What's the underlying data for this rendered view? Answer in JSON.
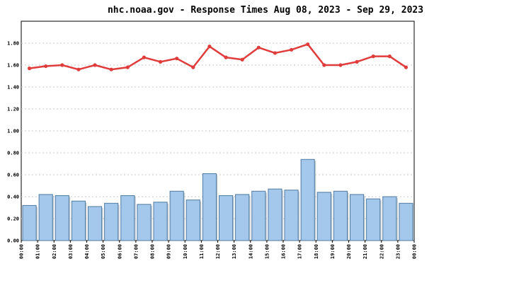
{
  "chart_data": {
    "type": "bar+line",
    "title": "nhc.noaa.gov - Response Times Aug 08, 2023 - Sep 29, 2023",
    "xlabel": "",
    "ylabel": "",
    "ylim": [
      0,
      2.0
    ],
    "y_ticks": [
      "0.00",
      "0.20",
      "0.40",
      "0.60",
      "0.80",
      "1.00",
      "1.20",
      "1.40",
      "1.60",
      "1.80"
    ],
    "x_tick_labels": [
      "00:00",
      "01:00",
      "02:00",
      "03:00",
      "04:00",
      "05:00",
      "06:00",
      "07:00",
      "08:00",
      "09:00",
      "10:00",
      "11:00",
      "12:00",
      "13:00",
      "14:00",
      "15:00",
      "16:00",
      "17:00",
      "18:00",
      "19:00",
      "20:00",
      "21:00",
      "22:00",
      "23:00",
      "00:00"
    ],
    "grid": true,
    "series": [
      {
        "kind": "bar",
        "color": "#a4c8ec",
        "edge_color": "#4f7aa0",
        "values": [
          0.32,
          0.42,
          0.41,
          0.36,
          0.31,
          0.34,
          0.41,
          0.33,
          0.35,
          0.45,
          0.37,
          0.61,
          0.41,
          0.42,
          0.45,
          0.47,
          0.46,
          0.74,
          0.44,
          0.45,
          0.42,
          0.38,
          0.4,
          0.34
        ]
      },
      {
        "kind": "line",
        "color": "#e03c3c",
        "values": [
          1.57,
          1.59,
          1.6,
          1.56,
          1.6,
          1.56,
          1.58,
          1.67,
          1.63,
          1.66,
          1.58,
          1.77,
          1.67,
          1.65,
          1.76,
          1.71,
          1.74,
          1.79,
          1.6,
          1.6,
          1.63,
          1.68,
          1.68,
          1.58
        ]
      }
    ]
  }
}
